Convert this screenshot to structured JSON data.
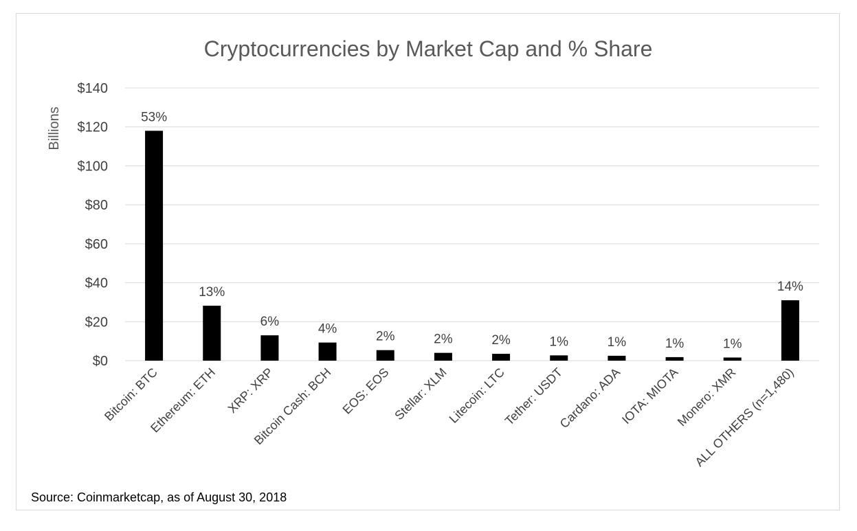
{
  "chart_data": {
    "type": "bar",
    "title": "Cryptocurrencies by Market Cap and % Share",
    "ylabel": "Billions",
    "xlabel": "",
    "ylim": [
      0,
      140
    ],
    "yticks": [
      "$0",
      "$20",
      "$40",
      "$60",
      "$80",
      "$100",
      "$120",
      "$140"
    ],
    "ytick_values": [
      0,
      20,
      40,
      60,
      80,
      100,
      120,
      140
    ],
    "grid": true,
    "categories": [
      "Bitcoin: BTC",
      "Ethereum: ETH",
      "XRP: XRP",
      "Bitcoin Cash: BCH",
      "EOS: EOS",
      "Stellar: XLM",
      "Litecoin: LTC",
      "Tether: USDT",
      "Cardano: ADA",
      "IOTA: MIOTA",
      "Monero: XMR",
      "ALL OTHERS (n=1,480)"
    ],
    "values": [
      118,
      28.2,
      13,
      9.3,
      5.4,
      4,
      3.5,
      2.7,
      2.5,
      1.8,
      1.6,
      31
    ],
    "data_labels": [
      "53%",
      "13%",
      "6%",
      "4%",
      "2%",
      "2%",
      "2%",
      "1%",
      "1%",
      "1%",
      "1%",
      "14%"
    ],
    "bar_color": "#000000",
    "source": "Source: Coinmarketcap, as of August 30, 2018"
  }
}
